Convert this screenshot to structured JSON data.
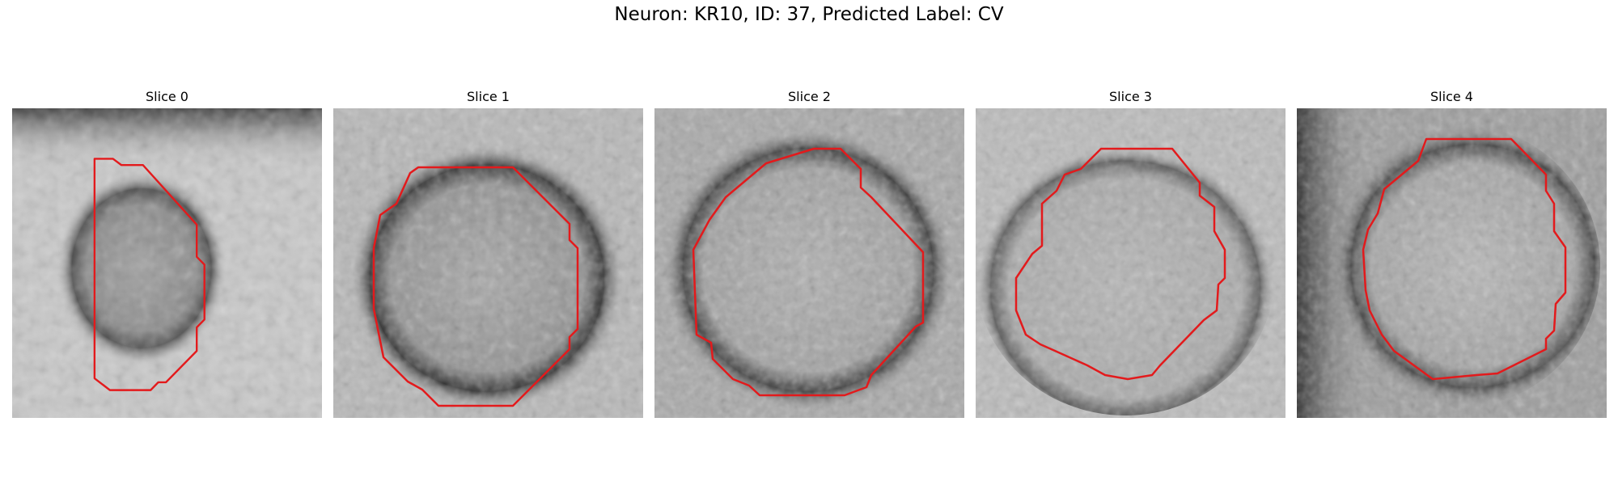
{
  "figure": {
    "title": "Neuron: KR10, ID: 37, Predicted Label: CV",
    "contour_color": "#e31a1c"
  },
  "slices": [
    {
      "title": "Slice 0"
    },
    {
      "title": "Slice 1"
    },
    {
      "title": "Slice 2"
    },
    {
      "title": "Slice 3"
    },
    {
      "title": "Slice 4"
    }
  ]
}
